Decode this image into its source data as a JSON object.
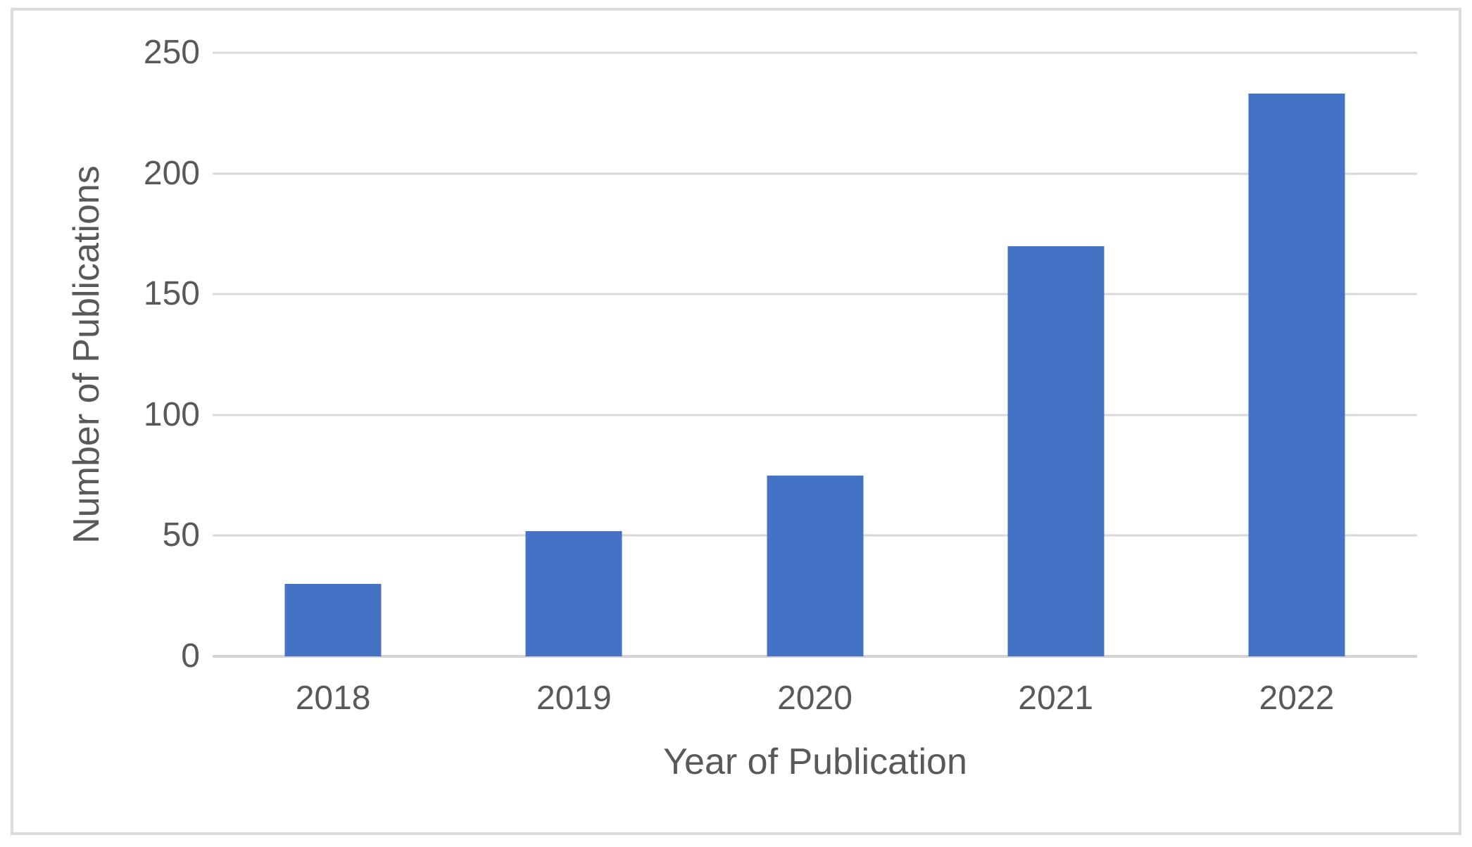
{
  "chart_data": {
    "type": "bar",
    "title": "",
    "categories": [
      "2018",
      "2019",
      "2020",
      "2021",
      "2022"
    ],
    "values": [
      30,
      52,
      75,
      170,
      233
    ],
    "xlabel": "Year of Publication",
    "ylabel": "Number of Publications",
    "ylim": [
      0,
      250
    ],
    "yticks": [
      0,
      50,
      100,
      150,
      200,
      250
    ],
    "grid": "horizontal-on",
    "legend": "none",
    "colors": {
      "bar": "#4472C4",
      "gridline": "#D9D9D9",
      "axis_line": "#D3D3D3",
      "text": "#595959",
      "frame_border": "#DBDBDB",
      "background": "#FFFFFF"
    }
  }
}
